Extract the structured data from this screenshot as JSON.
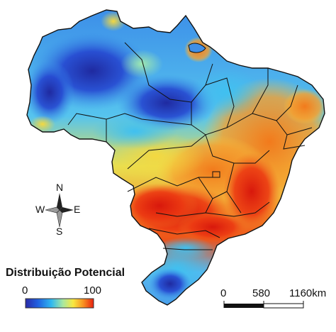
{
  "legend": {
    "title": "Distribuição Potencial",
    "min_label": "0",
    "max_label": "100",
    "colors": [
      "#2a2aa8",
      "#2060e0",
      "#30b8f0",
      "#a8e8a0",
      "#f8e840",
      "#f89020",
      "#e82010"
    ]
  },
  "compass": {
    "north": "N",
    "south": "S",
    "east": "E",
    "west": "W"
  },
  "scale_bar": {
    "ticks": [
      "0",
      "580",
      "1160km"
    ]
  },
  "palette": {
    "high": "#e8300c",
    "mid_high": "#f59a2a",
    "mid": "#f3e24a",
    "low_mid": "#8fe0b8",
    "low": "#3fb6f0",
    "very_low": "#2a4ed8",
    "min": "#2222a0",
    "border": "#111111"
  }
}
